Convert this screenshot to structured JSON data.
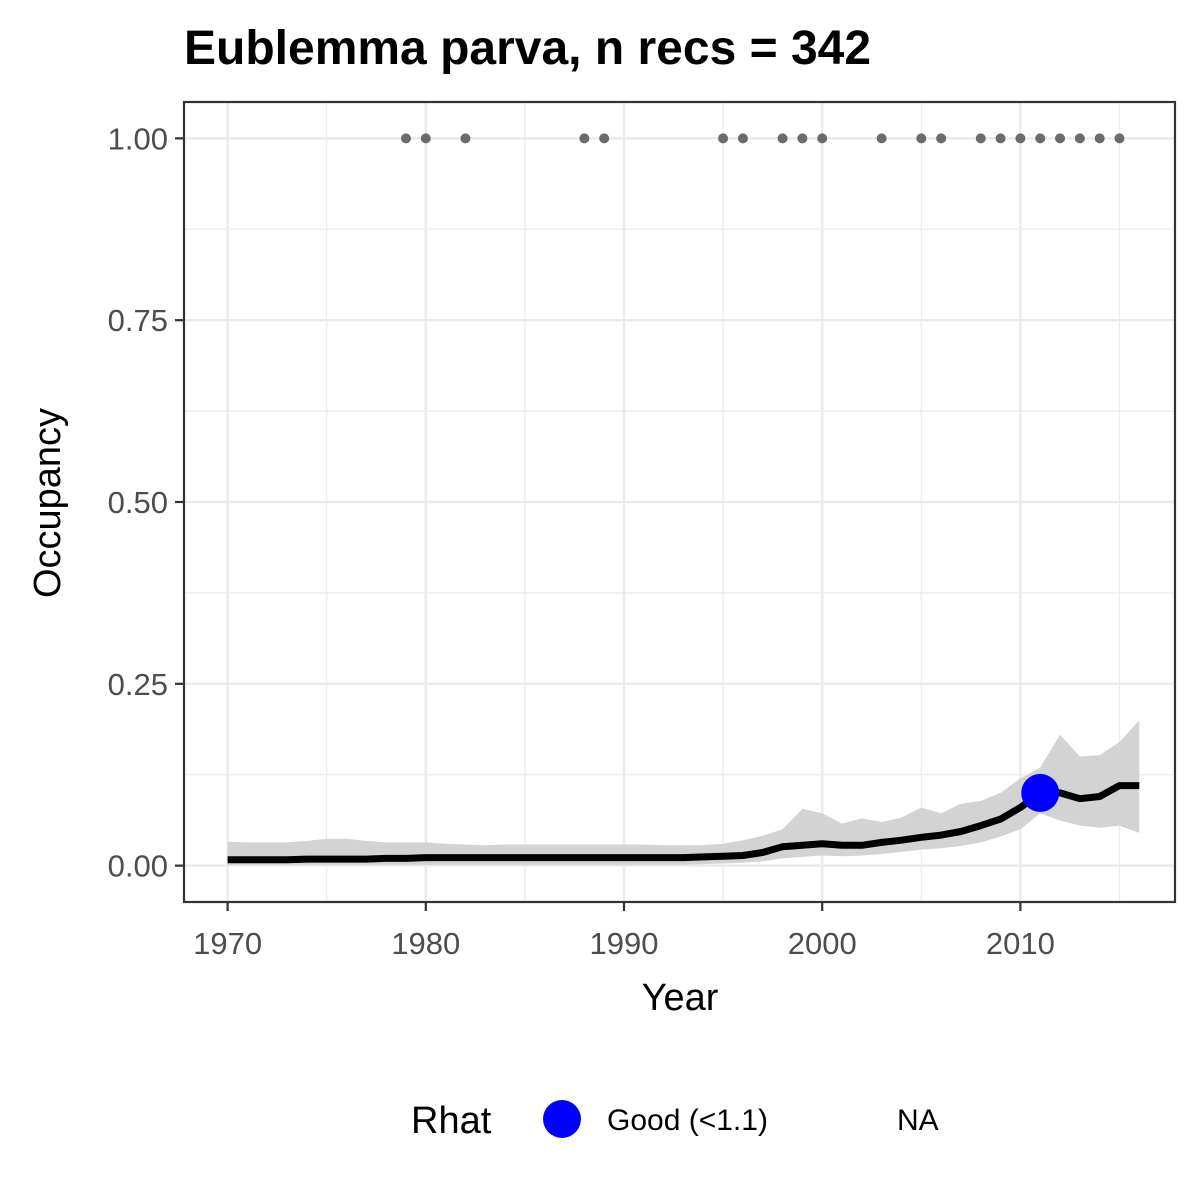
{
  "chart_data": {
    "type": "line",
    "title": "Eublemma parva, n recs = 342",
    "xlabel": "Year",
    "ylabel": "Occupancy",
    "xlim": [
      1967.8,
      2017.8
    ],
    "ylim": [
      -0.05,
      1.05
    ],
    "x_ticks": [
      1970,
      1980,
      1990,
      2000,
      2010
    ],
    "x_tick_labels": [
      "1970",
      "1980",
      "1990",
      "2000",
      "2010"
    ],
    "y_ticks": [
      0,
      0.25,
      0.5,
      0.75,
      1.0
    ],
    "y_tick_labels": [
      "0.00",
      "0.25",
      "0.50",
      "0.75",
      "1.00"
    ],
    "grid": true,
    "colors": {
      "line": "#000000",
      "ribbon": "#d3d3d3",
      "record_points": "#6b6b6b",
      "rhat_good": "#0000ff",
      "grid_major": "#ebebeb",
      "panel_border": "#333333"
    },
    "series": [
      {
        "x": [
          1970,
          1971,
          1972,
          1973,
          1974,
          1975,
          1976,
          1977,
          1978,
          1979,
          1980,
          1981,
          1982,
          1983,
          1984,
          1985,
          1986,
          1987,
          1988,
          1989,
          1990,
          1991,
          1992,
          1993,
          1994,
          1995,
          1996,
          1997,
          1998,
          1999,
          2000,
          2001,
          2002,
          2003,
          2004,
          2005,
          2006,
          2007,
          2008,
          2009,
          2010,
          2011,
          2012,
          2013,
          2014,
          2015,
          2016
        ],
        "y": [
          0.008,
          0.008,
          0.008,
          0.008,
          0.009,
          0.009,
          0.009,
          0.009,
          0.01,
          0.01,
          0.011,
          0.011,
          0.011,
          0.011,
          0.011,
          0.011,
          0.011,
          0.011,
          0.011,
          0.011,
          0.011,
          0.011,
          0.011,
          0.011,
          0.012,
          0.013,
          0.014,
          0.018,
          0.026,
          0.028,
          0.03,
          0.028,
          0.028,
          0.032,
          0.035,
          0.039,
          0.042,
          0.047,
          0.055,
          0.064,
          0.08,
          0.1,
          0.1,
          0.092,
          0.095,
          0.11,
          0.11
        ],
        "lower": [
          0.001,
          0.001,
          0.001,
          0.001,
          0.001,
          0.001,
          0.001,
          0.001,
          0.001,
          0.001,
          0.001,
          0.001,
          0.001,
          0.001,
          0.001,
          0.001,
          0.001,
          0.001,
          0.001,
          0.001,
          0.001,
          0.001,
          0.001,
          0.001,
          0.002,
          0.003,
          0.004,
          0.006,
          0.01,
          0.012,
          0.014,
          0.013,
          0.014,
          0.016,
          0.019,
          0.022,
          0.024,
          0.027,
          0.032,
          0.04,
          0.05,
          0.072,
          0.062,
          0.055,
          0.052,
          0.055,
          0.045
        ],
        "upper": [
          0.033,
          0.032,
          0.032,
          0.032,
          0.034,
          0.037,
          0.037,
          0.034,
          0.032,
          0.032,
          0.032,
          0.03,
          0.029,
          0.028,
          0.029,
          0.029,
          0.029,
          0.029,
          0.029,
          0.029,
          0.029,
          0.029,
          0.028,
          0.028,
          0.028,
          0.03,
          0.035,
          0.041,
          0.05,
          0.078,
          0.072,
          0.058,
          0.065,
          0.06,
          0.066,
          0.08,
          0.072,
          0.085,
          0.089,
          0.1,
          0.12,
          0.135,
          0.18,
          0.15,
          0.152,
          0.17,
          0.2
        ]
      }
    ],
    "record_years": [
      1979,
      1980,
      1982,
      1988,
      1989,
      1995,
      1996,
      1998,
      1999,
      2000,
      2003,
      2005,
      2006,
      2008,
      2009,
      2010,
      2011,
      2012,
      2013,
      2014,
      2015
    ],
    "record_value": 1.0,
    "rhat_points": [
      {
        "x": 2011,
        "y": 0.1,
        "category": "Good (<1.1)"
      }
    ],
    "legend": {
      "title": "Rhat",
      "items": [
        {
          "label": "Good (<1.1)",
          "color": "#0000ff",
          "marker": "circle"
        },
        {
          "label": "NA",
          "color": "",
          "marker": "none"
        }
      ],
      "placement": "bottom"
    }
  }
}
